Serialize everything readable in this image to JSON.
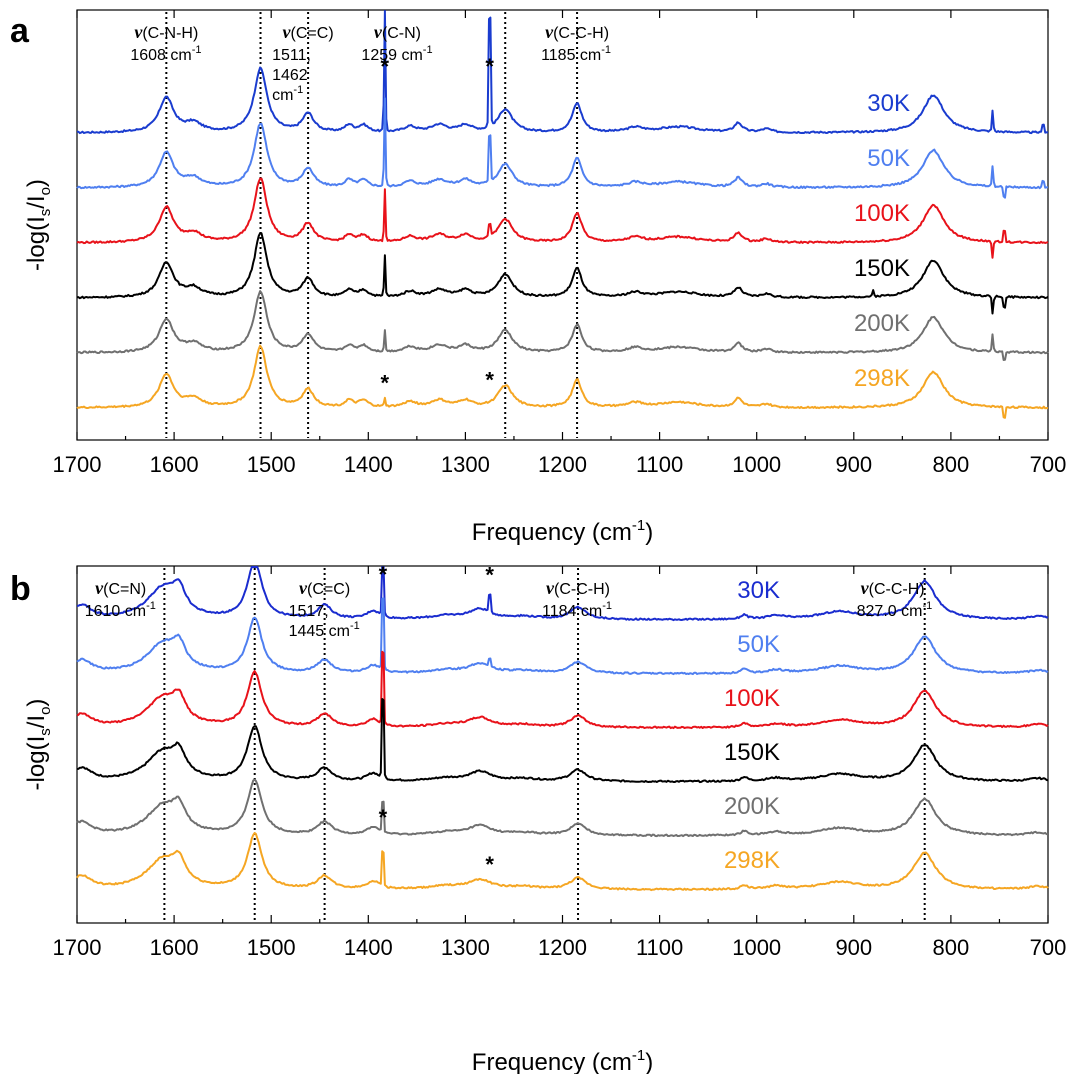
{
  "chart_data": [
    {
      "panel": "a",
      "type": "line",
      "xlabel": "Frequency (cm",
      "xlabel_sup": "-1",
      "xlabel_end": ")",
      "ylabel_main": "-log(I",
      "ylabel_sub1": "s",
      "ylabel_mid": "/I",
      "ylabel_sub2": "o",
      "ylabel_end": ")",
      "xlim": [
        1700,
        700
      ],
      "reversed_x": true,
      "xticks": [
        1700,
        1600,
        1500,
        1400,
        1300,
        1200,
        1100,
        1000,
        900,
        800,
        700
      ],
      "grid": false,
      "ref_lines": [
        1608,
        1511,
        1462,
        1259,
        1185
      ],
      "annotations": [
        {
          "x": 1608,
          "nu": "ν",
          "text": "(C-N-H)",
          "lines": [
            "1608 cm"
          ],
          "sup": "-1"
        },
        {
          "x": 1462,
          "nu": "ν",
          "text": "(C=C)",
          "lines": [
            "1511,",
            "1462",
            "cm"
          ],
          "sup": "-1"
        },
        {
          "x": 1370,
          "nu": "ν",
          "text": "(C-N)",
          "lines": [
            "1259 cm"
          ],
          "sup": "-1"
        },
        {
          "x": 1185,
          "nu": "ν",
          "text": "(C-C-H)",
          "lines": [
            "1185 cm"
          ],
          "sup": "-1"
        }
      ],
      "stars": [
        {
          "x": 1383,
          "series": "30K",
          "y": 1.02
        },
        {
          "x": 1275,
          "series": "30K",
          "y": 1.02
        },
        {
          "x": 1383,
          "series": "298K",
          "y": 0.3
        },
        {
          "x": 1275,
          "series": "298K",
          "y": 0.35
        }
      ],
      "peaks": [
        {
          "x": 1608,
          "h": 0.6,
          "w": 9
        },
        {
          "x": 1580,
          "h": 0.15,
          "w": 10
        },
        {
          "x": 1511,
          "h": 1.1,
          "w": 8
        },
        {
          "x": 1462,
          "h": 0.32,
          "w": 7
        },
        {
          "x": 1420,
          "h": 0.12,
          "w": 5
        },
        {
          "x": 1405,
          "h": 0.12,
          "w": 6
        },
        {
          "x": 1357,
          "h": 0.1,
          "w": 8
        },
        {
          "x": 1327,
          "h": 0.13,
          "w": 10
        },
        {
          "x": 1300,
          "h": 0.12,
          "w": 8
        },
        {
          "x": 1259,
          "h": 0.4,
          "w": 9
        },
        {
          "x": 1185,
          "h": 0.5,
          "w": 6
        },
        {
          "x": 1125,
          "h": 0.08,
          "w": 10
        },
        {
          "x": 1080,
          "h": 0.1,
          "w": 25
        },
        {
          "x": 1019,
          "h": 0.16,
          "w": 5
        },
        {
          "x": 990,
          "h": 0.06,
          "w": 6
        },
        {
          "x": 818,
          "h": 0.65,
          "w": 13
        }
      ],
      "series": [
        {
          "name": "30K",
          "color": "#1a3ccf",
          "offset": 5.0,
          "scale": 1.0,
          "spikes": [
            {
              "x": 1383,
              "h": 2.2
            },
            {
              "x": 1275,
              "h": 2.6
            },
            {
              "x": 757,
              "h": 0.35
            },
            {
              "x": 705,
              "h": 0.2
            }
          ]
        },
        {
          "name": "50K",
          "color": "#4f7ff0",
          "offset": 4.0,
          "scale": 1.0,
          "spikes": [
            {
              "x": 1383,
              "h": 1.5
            },
            {
              "x": 1275,
              "h": 1.1
            },
            {
              "x": 757,
              "h": 0.35
            },
            {
              "x": 745,
              "h": -0.25
            },
            {
              "x": 705,
              "h": 0.15
            }
          ]
        },
        {
          "name": "100K",
          "color": "#e8121a",
          "offset": 3.0,
          "scale": 1.0,
          "spikes": [
            {
              "x": 1383,
              "h": 0.9
            },
            {
              "x": 1275,
              "h": 0.3
            },
            {
              "x": 757,
              "h": -0.3
            },
            {
              "x": 745,
              "h": 0.25
            }
          ]
        },
        {
          "name": "150K",
          "color": "#000000",
          "offset": 2.0,
          "scale": 1.0,
          "spikes": [
            {
              "x": 1383,
              "h": 0.7
            },
            {
              "x": 880,
              "h": 0.1
            },
            {
              "x": 757,
              "h": -0.3
            },
            {
              "x": 745,
              "h": -0.25
            }
          ]
        },
        {
          "name": "200K",
          "color": "#707070",
          "offset": 1.0,
          "scale": 0.95,
          "spikes": [
            {
              "x": 1383,
              "h": 0.35
            },
            {
              "x": 757,
              "h": 0.3
            },
            {
              "x": 745,
              "h": -0.2
            }
          ]
        },
        {
          "name": "298K",
          "color": "#f5a623",
          "offset": 0.0,
          "scale": 0.95,
          "spikes": [
            {
              "x": 1383,
              "h": 0.15
            },
            {
              "x": 745,
              "h": -0.25
            }
          ]
        }
      ]
    },
    {
      "panel": "b",
      "type": "line",
      "xlabel": "Frequency (cm",
      "xlabel_sup": "-1",
      "xlabel_end": ")",
      "ylabel_main": "-log(I",
      "ylabel_sub1": "s",
      "ylabel_mid": "/I",
      "ylabel_sub2": "o",
      "ylabel_end": ")",
      "xlim": [
        1700,
        700
      ],
      "reversed_x": true,
      "xticks": [
        1700,
        1600,
        1500,
        1400,
        1300,
        1200,
        1100,
        1000,
        900,
        800,
        700
      ],
      "grid": false,
      "ref_lines": [
        1610,
        1517,
        1445,
        1184,
        827
      ],
      "annotations": [
        {
          "x": 1655,
          "nu": "ν",
          "text": "(C=N)",
          "lines": [
            "1610 cm"
          ],
          "sup": "-1"
        },
        {
          "x": 1445,
          "nu": "ν",
          "text": "(C=C)",
          "lines": [
            "1517,",
            "1445 cm"
          ],
          "sup": "-1"
        },
        {
          "x": 1184,
          "nu": "ν",
          "text": "(C-C-H)",
          "lines": [
            "1184 cm"
          ],
          "sup": "-1"
        },
        {
          "x": 860,
          "nu": "ν",
          "text": "(C-C-H)",
          "lines": [
            "827.0 cm"
          ],
          "sup": "-1"
        }
      ],
      "stars": [
        {
          "x": 1385,
          "series": "30K",
          "y": 1.75
        },
        {
          "x": 1275,
          "series": "30K",
          "y": 0.72
        },
        {
          "x": 1385,
          "series": "298K",
          "y": 1.25
        },
        {
          "x": 1275,
          "series": "298K",
          "y": 0.35
        }
      ],
      "peaks": [
        {
          "x": 1695,
          "h": 0.25,
          "w": 12
        },
        {
          "x": 1612,
          "h": 0.55,
          "w": 20
        },
        {
          "x": 1595,
          "h": 0.4,
          "w": 8
        },
        {
          "x": 1517,
          "h": 1.05,
          "w": 9
        },
        {
          "x": 1445,
          "h": 0.25,
          "w": 9
        },
        {
          "x": 1395,
          "h": 0.15,
          "w": 8
        },
        {
          "x": 1320,
          "h": 0.06,
          "w": 20
        },
        {
          "x": 1285,
          "h": 0.18,
          "w": 14
        },
        {
          "x": 1240,
          "h": 0.05,
          "w": 20
        },
        {
          "x": 1184,
          "h": 0.22,
          "w": 10
        },
        {
          "x": 1013,
          "h": 0.08,
          "w": 4
        },
        {
          "x": 980,
          "h": 0.06,
          "w": 12
        },
        {
          "x": 915,
          "h": 0.14,
          "w": 25
        },
        {
          "x": 827,
          "h": 0.7,
          "w": 14
        },
        {
          "x": 710,
          "h": 0.06,
          "w": 12
        }
      ],
      "series": [
        {
          "name": "30K",
          "color": "#1a2ccf",
          "offset": 5.0,
          "scale": 1.05,
          "spikes": [
            {
              "x": 1385,
              "h": 2.2
            },
            {
              "x": 1275,
              "h": 0.45
            }
          ]
        },
        {
          "name": "50K",
          "color": "#4f7ff0",
          "offset": 4.0,
          "scale": 1.0,
          "spikes": [
            {
              "x": 1385,
              "h": 1.9
            },
            {
              "x": 1275,
              "h": 0.2
            }
          ]
        },
        {
          "name": "100K",
          "color": "#e8121a",
          "offset": 3.0,
          "scale": 1.0,
          "spikes": [
            {
              "x": 1385,
              "h": 1.9
            }
          ]
        },
        {
          "name": "150K",
          "color": "#000000",
          "offset": 2.0,
          "scale": 1.0,
          "spikes": [
            {
              "x": 1385,
              "h": 2.1
            }
          ]
        },
        {
          "name": "200K",
          "color": "#707070",
          "offset": 1.0,
          "scale": 1.0,
          "spikes": [
            {
              "x": 1385,
              "h": 0.8
            }
          ]
        },
        {
          "name": "298K",
          "color": "#f5a623",
          "offset": 0.0,
          "scale": 1.0,
          "spikes": [
            {
              "x": 1385,
              "h": 0.9
            }
          ]
        }
      ]
    }
  ],
  "panel_labels": [
    "a",
    "b"
  ]
}
